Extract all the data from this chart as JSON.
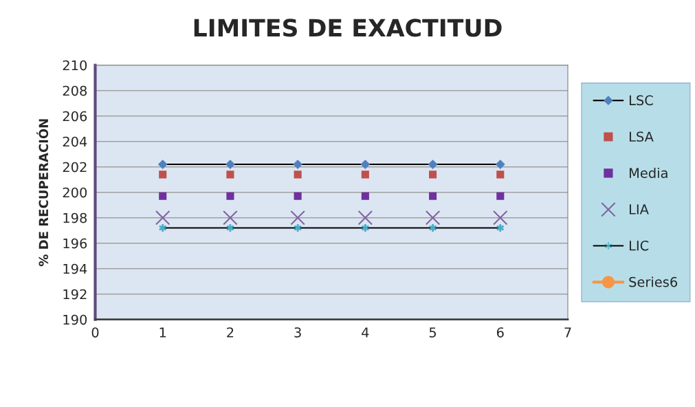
{
  "chart_data": {
    "type": "line",
    "title": "LIMITES DE EXACTITUD",
    "ylabel": "% DE RECUPERACIÓN",
    "x": [
      1,
      2,
      3,
      4,
      5,
      6
    ],
    "series": [
      {
        "name": "LSC",
        "color": "#4f81bd",
        "marker": "diamond",
        "line_style": "solid",
        "values": [
          202.2,
          202.2,
          202.2,
          202.2,
          202.2,
          202.2
        ]
      },
      {
        "name": "LSA",
        "type": "scatter",
        "color": "#c0504d",
        "marker": "square",
        "values": [
          201.4,
          201.4,
          201.4,
          201.4,
          201.4,
          201.4
        ]
      },
      {
        "name": "Media",
        "type": "scatter",
        "color": "#7030a0",
        "marker": "square",
        "values": [
          199.7,
          199.7,
          199.7,
          199.7,
          199.7,
          199.7
        ]
      },
      {
        "name": "LIA",
        "type": "scatter",
        "color": "#8064a2",
        "marker": "cross",
        "values": [
          198.0,
          198.0,
          198.0,
          198.0,
          198.0,
          198.0
        ]
      },
      {
        "name": "LIC",
        "color": "#4bacc6",
        "marker": "cross",
        "line_style": "solid",
        "values": [
          197.2,
          197.2,
          197.2,
          197.2,
          197.2,
          197.2
        ]
      },
      {
        "name": "Series6",
        "color": "#f79646",
        "marker": "circle",
        "line_style": "solid",
        "values": [
          null,
          null,
          null,
          null,
          null,
          null
        ]
      }
    ],
    "xlim": [
      0,
      7
    ],
    "xticks": [
      0,
      1,
      2,
      3,
      4,
      5,
      6,
      7
    ],
    "ylim": [
      190,
      210
    ],
    "yticks": [
      190,
      192,
      194,
      196,
      198,
      200,
      202,
      204,
      206,
      208,
      210
    ],
    "grid": "y",
    "legend": "right"
  }
}
